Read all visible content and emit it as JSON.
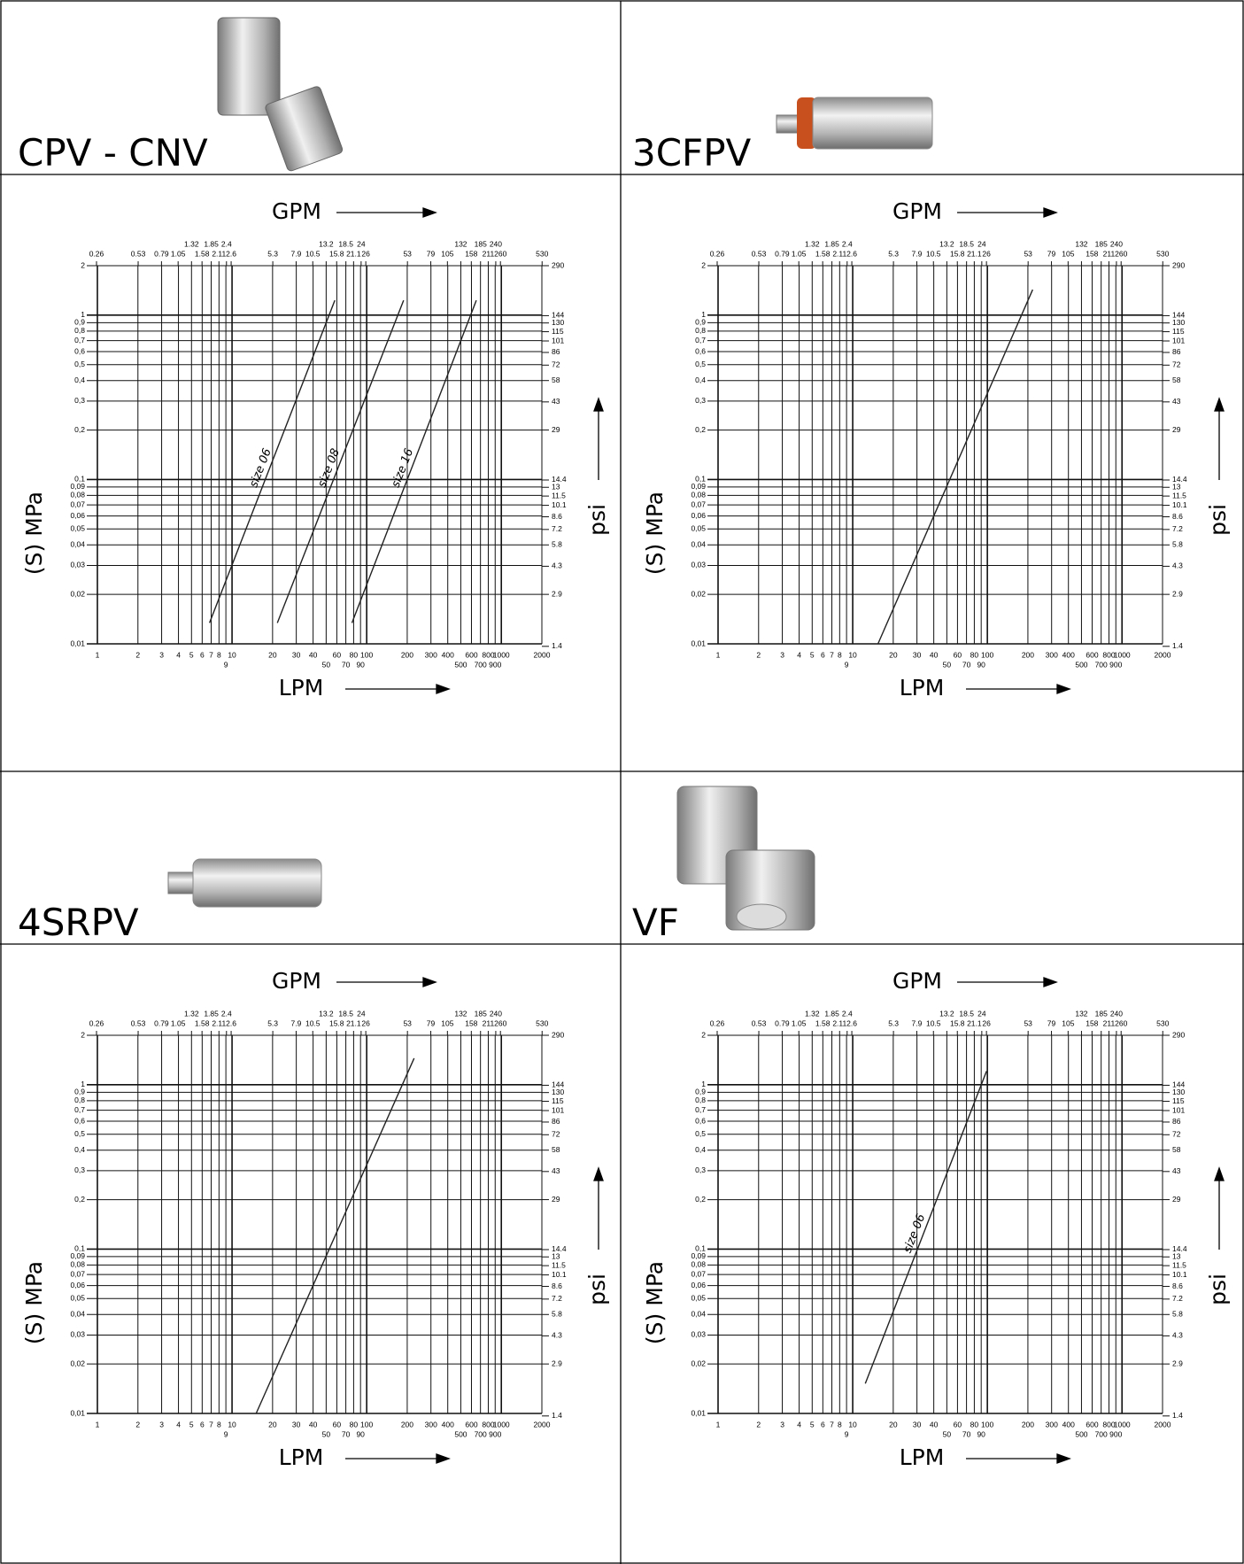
{
  "chart_data": [
    {
      "type": "line",
      "title": "CPV - CNV",
      "x_label": "LPM",
      "x2_label": "GPM",
      "y_label": "(S) MPa",
      "y2_label": "psi",
      "xscale": "log",
      "yscale": "log",
      "grid": true,
      "xlim": [
        1,
        2000
      ],
      "xticks": [
        1,
        2,
        3,
        4,
        5,
        6,
        7,
        8,
        9,
        10,
        20,
        30,
        40,
        50,
        60,
        70,
        80,
        90,
        100,
        200,
        300,
        400,
        500,
        600,
        700,
        800,
        900,
        1000,
        2000
      ],
      "x2lim": [
        0.264,
        528
      ],
      "x2ticks": [
        0.26,
        0.53,
        0.79,
        1.05,
        1.32,
        1.58,
        1.85,
        2.11,
        2.4,
        2.6,
        5.3,
        7.9,
        10.5,
        13.2,
        15.8,
        18.5,
        21.1,
        24,
        26,
        53,
        79,
        105,
        132,
        158,
        185,
        211,
        240,
        260,
        530
      ],
      "ylim": [
        0.01,
        2
      ],
      "yticks": [
        {
          "value": 0.01,
          "label": "0,01"
        },
        {
          "value": 0.02,
          "label": "0,02"
        },
        {
          "value": 0.03,
          "label": "0,03"
        },
        {
          "value": 0.04,
          "label": "0,04"
        },
        {
          "value": 0.05,
          "label": "0,05"
        },
        {
          "value": 0.06,
          "label": "0,06"
        },
        {
          "value": 0.07,
          "label": "0,07"
        },
        {
          "value": 0.08,
          "label": "0,08"
        },
        {
          "value": 0.09,
          "label": "0,09"
        },
        {
          "value": 0.1,
          "label": "0,1"
        },
        {
          "value": 0.2,
          "label": "0,2"
        },
        {
          "value": 0.3,
          "label": "0,3"
        },
        {
          "value": 0.4,
          "label": "0,4"
        },
        {
          "value": 0.5,
          "label": "0,5"
        },
        {
          "value": 0.6,
          "label": "0,6"
        },
        {
          "value": 0.7,
          "label": "0,7"
        },
        {
          "value": 0.8,
          "label": "0,8"
        },
        {
          "value": 0.9,
          "label": "0,9"
        },
        1,
        2
      ],
      "y2lim": [
        1.45,
        290
      ],
      "y2ticks": [
        1.4,
        2.9,
        4.3,
        5.8,
        7.2,
        8.6,
        10.1,
        11.5,
        13,
        14.4,
        29,
        43,
        58,
        72,
        86,
        101,
        115,
        130,
        144,
        290
      ],
      "series": [
        {
          "name": "size 06",
          "color": "#222222",
          "x": [
            6.8,
            58
          ],
          "values": [
            0.0134,
            1.23
          ]
        },
        {
          "name": "size 08",
          "color": "#222222",
          "x": [
            21.7,
            188
          ],
          "values": [
            0.0134,
            1.23
          ]
        },
        {
          "name": "size 16",
          "color": "#222222",
          "x": [
            77.7,
            652
          ],
          "values": [
            0.0134,
            1.23
          ]
        }
      ]
    },
    {
      "type": "line",
      "title": "3CFPV",
      "x_label": "LPM",
      "x2_label": "GPM",
      "y_label": "(S) MPa",
      "y2_label": "psi",
      "xscale": "log",
      "yscale": "log",
      "grid": true,
      "xlim": [
        1,
        2000
      ],
      "xticks": [
        1,
        2,
        3,
        4,
        5,
        6,
        7,
        8,
        9,
        10,
        20,
        30,
        40,
        50,
        60,
        70,
        80,
        90,
        100,
        200,
        300,
        400,
        500,
        600,
        700,
        800,
        900,
        1000,
        2000
      ],
      "x2lim": [
        0.264,
        528
      ],
      "x2ticks": [
        0.26,
        0.53,
        0.79,
        1.05,
        1.32,
        1.58,
        1.85,
        2.11,
        2.4,
        2.6,
        5.3,
        7.9,
        10.5,
        13.2,
        15.8,
        18.5,
        21.1,
        24,
        26,
        53,
        79,
        105,
        132,
        158,
        185,
        211,
        240,
        260,
        530
      ],
      "ylim": [
        0.01,
        2
      ],
      "yticks": [
        {
          "value": 0.01,
          "label": "0,01"
        },
        {
          "value": 0.02,
          "label": "0,02"
        },
        {
          "value": 0.03,
          "label": "0,03"
        },
        {
          "value": 0.04,
          "label": "0,04"
        },
        {
          "value": 0.05,
          "label": "0,05"
        },
        {
          "value": 0.06,
          "label": "0,06"
        },
        {
          "value": 0.07,
          "label": "0,07"
        },
        {
          "value": 0.08,
          "label": "0,08"
        },
        {
          "value": 0.09,
          "label": "0,09"
        },
        {
          "value": 0.1,
          "label": "0,1"
        },
        {
          "value": 0.2,
          "label": "0,2"
        },
        {
          "value": 0.3,
          "label": "0,3"
        },
        {
          "value": 0.4,
          "label": "0,4"
        },
        {
          "value": 0.5,
          "label": "0,5"
        },
        {
          "value": 0.6,
          "label": "0,6"
        },
        {
          "value": 0.7,
          "label": "0,7"
        },
        {
          "value": 0.8,
          "label": "0,8"
        },
        {
          "value": 0.9,
          "label": "0,9"
        },
        1,
        2
      ],
      "y2lim": [
        1.45,
        290
      ],
      "y2ticks": [
        1.4,
        2.9,
        4.3,
        5.8,
        7.2,
        8.6,
        10.1,
        11.5,
        13,
        14.4,
        29,
        43,
        58,
        72,
        86,
        101,
        115,
        130,
        144,
        290
      ],
      "series": [
        {
          "color": "#222222",
          "x": [
            15.4,
            217
          ],
          "values": [
            0.01,
            1.43
          ]
        }
      ]
    },
    {
      "type": "line",
      "title": "4SRPV",
      "x_label": "LPM",
      "x2_label": "GPM",
      "y_label": "(S) MPa",
      "y2_label": "psi",
      "xscale": "log",
      "yscale": "log",
      "grid": true,
      "xlim": [
        1,
        2000
      ],
      "xticks": [
        1,
        2,
        3,
        4,
        5,
        6,
        7,
        8,
        9,
        10,
        20,
        30,
        40,
        50,
        60,
        70,
        80,
        90,
        100,
        200,
        300,
        400,
        500,
        600,
        700,
        800,
        900,
        1000,
        2000
      ],
      "x2lim": [
        0.264,
        528
      ],
      "x2ticks": [
        0.26,
        0.53,
        0.79,
        1.05,
        1.32,
        1.58,
        1.85,
        2.11,
        2.4,
        2.6,
        5.3,
        7.9,
        10.5,
        13.2,
        15.8,
        18.5,
        21.1,
        24,
        26,
        53,
        79,
        105,
        132,
        158,
        185,
        211,
        240,
        260,
        530
      ],
      "ylim": [
        0.01,
        2
      ],
      "yticks": [
        {
          "value": 0.01,
          "label": "0,01"
        },
        {
          "value": 0.02,
          "label": "0,02"
        },
        {
          "value": 0.03,
          "label": "0,03"
        },
        {
          "value": 0.04,
          "label": "0,04"
        },
        {
          "value": 0.05,
          "label": "0,05"
        },
        {
          "value": 0.06,
          "label": "0,06"
        },
        {
          "value": 0.07,
          "label": "0,07"
        },
        {
          "value": 0.08,
          "label": "0,08"
        },
        {
          "value": 0.09,
          "label": "0,09"
        },
        {
          "value": 0.1,
          "label": "0,1"
        },
        {
          "value": 0.2,
          "label": "0,2"
        },
        {
          "value": 0.3,
          "label": "0,3"
        },
        {
          "value": 0.4,
          "label": "0,4"
        },
        {
          "value": 0.5,
          "label": "0,5"
        },
        {
          "value": 0.6,
          "label": "0,6"
        },
        {
          "value": 0.7,
          "label": "0,7"
        },
        {
          "value": 0.8,
          "label": "0,8"
        },
        {
          "value": 0.9,
          "label": "0,9"
        },
        1,
        2
      ],
      "y2lim": [
        1.45,
        290
      ],
      "y2ticks": [
        1.4,
        2.9,
        4.3,
        5.8,
        7.2,
        8.6,
        10.1,
        11.5,
        13,
        14.4,
        29,
        43,
        58,
        72,
        86,
        101,
        115,
        130,
        144,
        290
      ],
      "series": [
        {
          "color": "#222222",
          "x": [
            15.1,
            225
          ],
          "values": [
            0.01,
            1.45
          ]
        }
      ]
    },
    {
      "type": "line",
      "title": "VF",
      "x_label": "LPM",
      "x2_label": "GPM",
      "y_label": "(S) MPa",
      "y2_label": "psi",
      "xscale": "log",
      "yscale": "log",
      "grid": true,
      "xlim": [
        1,
        2000
      ],
      "xticks": [
        1,
        2,
        3,
        4,
        5,
        6,
        7,
        8,
        9,
        10,
        20,
        30,
        40,
        50,
        60,
        70,
        80,
        90,
        100,
        200,
        300,
        400,
        500,
        600,
        700,
        800,
        900,
        1000,
        2000
      ],
      "x2lim": [
        0.264,
        528
      ],
      "x2ticks": [
        0.26,
        0.53,
        0.79,
        1.05,
        1.32,
        1.58,
        1.85,
        2.11,
        2.4,
        2.6,
        5.3,
        7.9,
        10.5,
        13.2,
        15.8,
        18.5,
        21.1,
        24,
        26,
        53,
        79,
        105,
        132,
        158,
        185,
        211,
        240,
        260,
        530
      ],
      "ylim": [
        0.01,
        2
      ],
      "yticks": [
        {
          "value": 0.01,
          "label": "0,01"
        },
        {
          "value": 0.02,
          "label": "0,02"
        },
        {
          "value": 0.03,
          "label": "0,03"
        },
        {
          "value": 0.04,
          "label": "0,04"
        },
        {
          "value": 0.05,
          "label": "0,05"
        },
        {
          "value": 0.06,
          "label": "0,06"
        },
        {
          "value": 0.07,
          "label": "0,07"
        },
        {
          "value": 0.08,
          "label": "0,08"
        },
        {
          "value": 0.09,
          "label": "0,09"
        },
        {
          "value": 0.1,
          "label": "0,1"
        },
        {
          "value": 0.2,
          "label": "0,2"
        },
        {
          "value": 0.3,
          "label": "0,3"
        },
        {
          "value": 0.4,
          "label": "0,4"
        },
        {
          "value": 0.5,
          "label": "0,5"
        },
        {
          "value": 0.6,
          "label": "0,6"
        },
        {
          "value": 0.7,
          "label": "0,7"
        },
        {
          "value": 0.8,
          "label": "0,8"
        },
        {
          "value": 0.9,
          "label": "0,9"
        },
        1,
        2
      ],
      "y2lim": [
        1.45,
        290
      ],
      "y2ticks": [
        1.4,
        2.9,
        4.3,
        5.8,
        7.2,
        8.6,
        10.1,
        11.5,
        13,
        14.4,
        29,
        43,
        58,
        72,
        86,
        101,
        115,
        130,
        144,
        290
      ],
      "series": [
        {
          "name": "size 06",
          "color": "#222222",
          "x": [
            12.4,
            98.6
          ],
          "values": [
            0.0152,
            1.21
          ]
        }
      ]
    }
  ]
}
